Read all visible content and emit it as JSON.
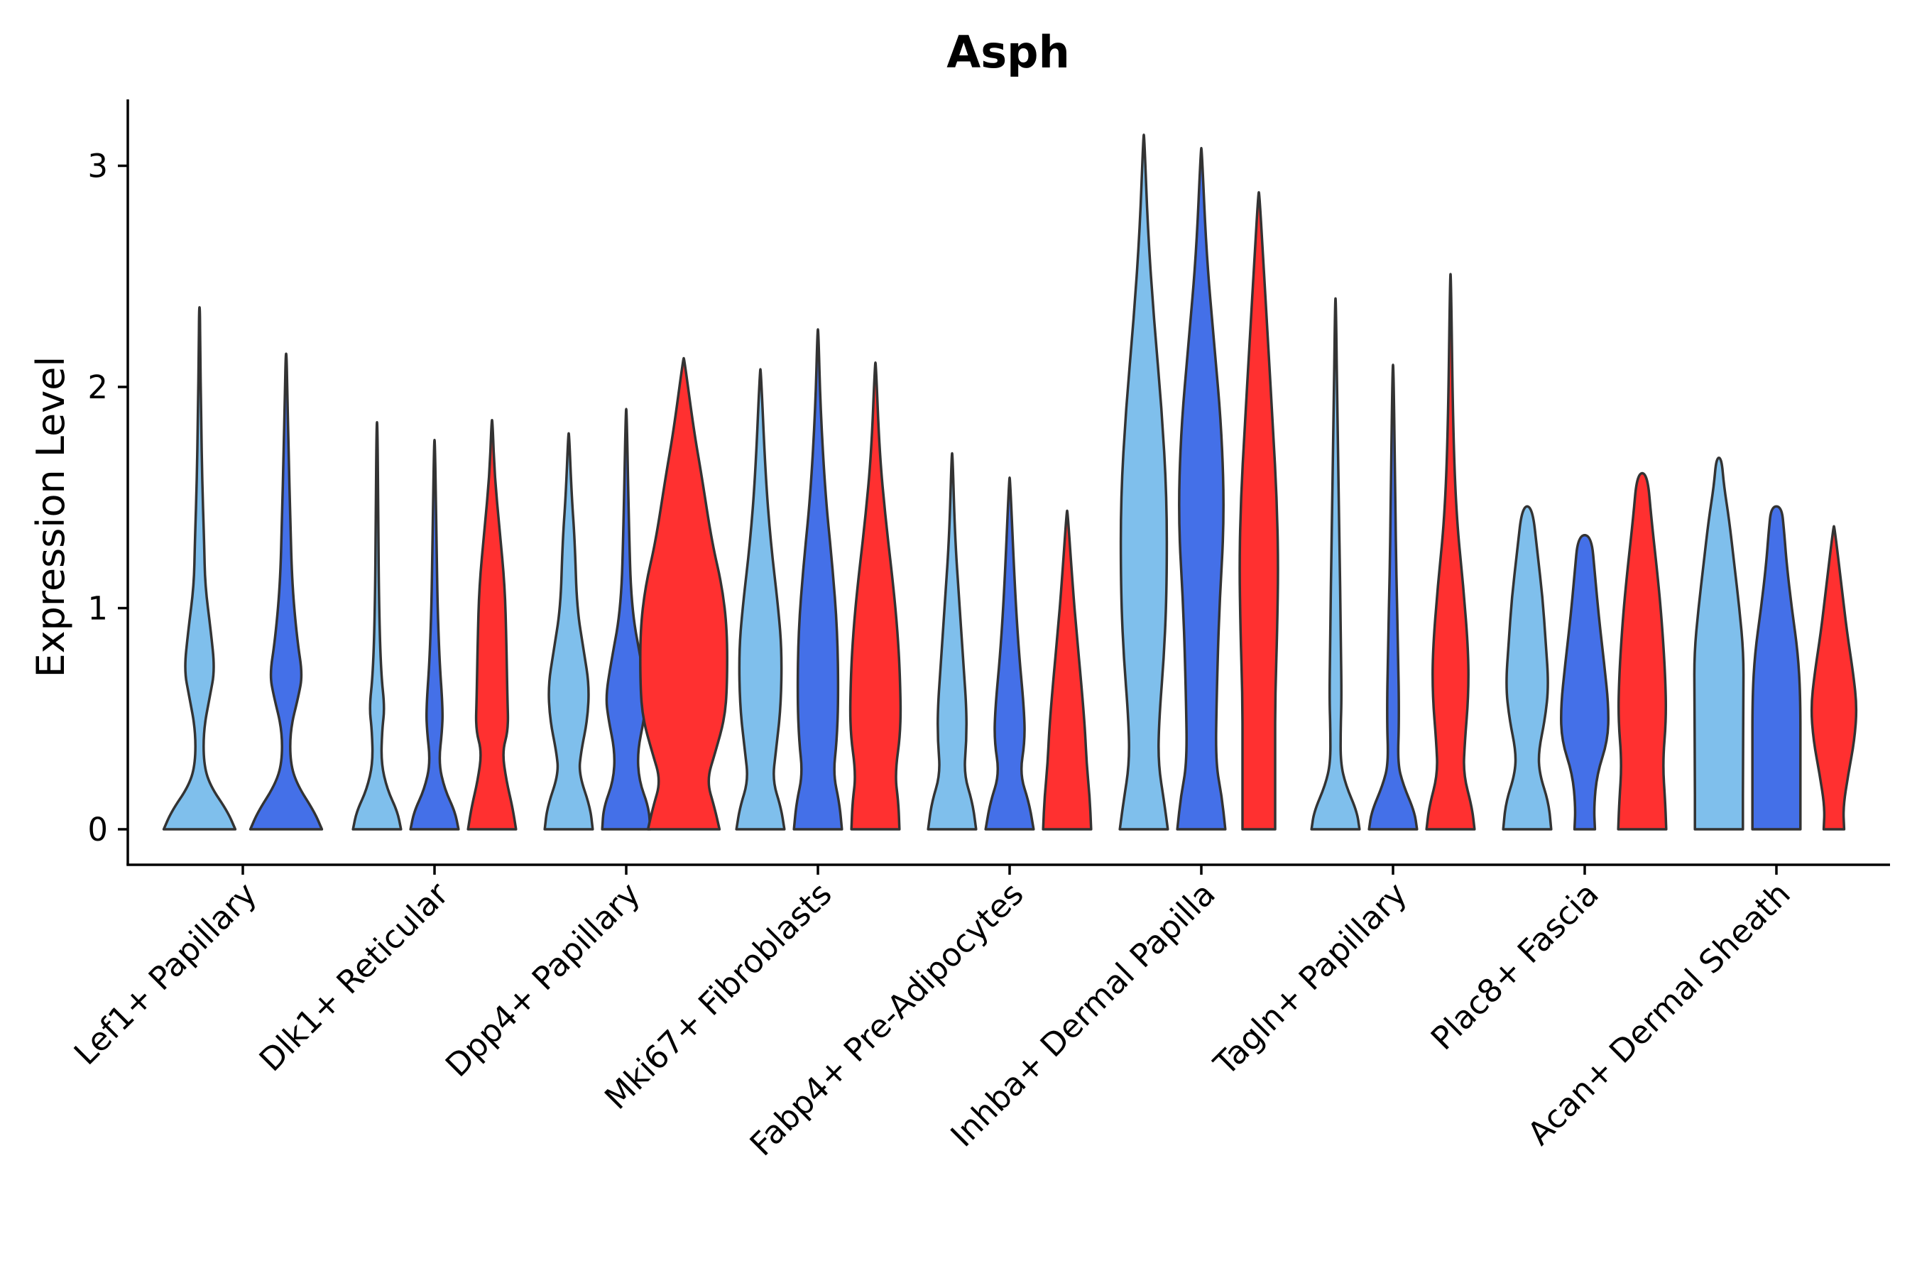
{
  "chart_data": {
    "type": "violin",
    "title": "Asph",
    "xlabel": "",
    "ylabel": "Expression Level",
    "ylim": [
      -0.16,
      3.3
    ],
    "yticks": [
      0,
      1,
      2,
      3
    ],
    "categories": [
      "Lef1+ Papillary",
      "Dlk1+ Reticular",
      "Dpp4+ Papillary",
      "Mki67+ Fibroblasts",
      "Fabp4+ Pre-Adipocytes",
      "Inhba+ Dermal Papilla",
      "Tagln+ Papillary",
      "Plac8+ Fascia",
      "Acan+ Dermal Sheath"
    ],
    "series": [
      {
        "name": "group-1",
        "color": "#7fbfec"
      },
      {
        "name": "group-2",
        "color": "#4470e8"
      },
      {
        "name": "group-3",
        "color": "#ff3030"
      }
    ],
    "violins": [
      {
        "category": 0,
        "series": 0,
        "max": 2.36,
        "profile": [
          [
            0,
            0.7
          ],
          [
            0.08,
            0.55
          ],
          [
            0.2,
            0.2
          ],
          [
            0.3,
            0.08
          ],
          [
            0.45,
            0.08
          ],
          [
            0.6,
            0.2
          ],
          [
            0.72,
            0.3
          ],
          [
            0.9,
            0.22
          ],
          [
            1.1,
            0.11
          ],
          [
            1.3,
            0.09
          ],
          [
            1.6,
            0.05
          ],
          [
            1.9,
            0.03
          ],
          [
            2.15,
            0.015
          ],
          [
            2.36,
            0.008
          ]
        ]
      },
      {
        "category": 0,
        "series": 1,
        "max": 2.15,
        "profile": [
          [
            0,
            0.7
          ],
          [
            0.08,
            0.55
          ],
          [
            0.2,
            0.22
          ],
          [
            0.3,
            0.08
          ],
          [
            0.45,
            0.08
          ],
          [
            0.6,
            0.24
          ],
          [
            0.7,
            0.32
          ],
          [
            0.85,
            0.22
          ],
          [
            1.1,
            0.12
          ],
          [
            1.4,
            0.08
          ],
          [
            1.7,
            0.05
          ],
          [
            1.95,
            0.025
          ],
          [
            2.15,
            0.008
          ]
        ]
      },
      {
        "category": 1,
        "series": 0,
        "max": 1.84,
        "profile": [
          [
            0,
            0.47
          ],
          [
            0.08,
            0.4
          ],
          [
            0.18,
            0.2
          ],
          [
            0.3,
            0.08
          ],
          [
            0.45,
            0.1
          ],
          [
            0.55,
            0.15
          ],
          [
            0.7,
            0.08
          ],
          [
            1.0,
            0.04
          ],
          [
            1.4,
            0.025
          ],
          [
            1.84,
            0.008
          ]
        ]
      },
      {
        "category": 1,
        "series": 1,
        "max": 1.76,
        "profile": [
          [
            0,
            0.47
          ],
          [
            0.08,
            0.4
          ],
          [
            0.18,
            0.2
          ],
          [
            0.3,
            0.08
          ],
          [
            0.45,
            0.15
          ],
          [
            0.55,
            0.16
          ],
          [
            0.75,
            0.1
          ],
          [
            1.0,
            0.06
          ],
          [
            1.3,
            0.04
          ],
          [
            1.76,
            0.008
          ]
        ]
      },
      {
        "category": 1,
        "series": 2,
        "max": 1.85,
        "profile": [
          [
            0,
            0.47
          ],
          [
            0.1,
            0.4
          ],
          [
            0.22,
            0.28
          ],
          [
            0.35,
            0.2
          ],
          [
            0.45,
            0.32
          ],
          [
            0.6,
            0.3
          ],
          [
            0.85,
            0.28
          ],
          [
            1.1,
            0.25
          ],
          [
            1.35,
            0.15
          ],
          [
            1.6,
            0.05
          ],
          [
            1.85,
            0.008
          ]
        ]
      },
      {
        "category": 2,
        "series": 0,
        "max": 1.79,
        "profile": [
          [
            0,
            0.47
          ],
          [
            0.1,
            0.42
          ],
          [
            0.25,
            0.2
          ],
          [
            0.35,
            0.24
          ],
          [
            0.5,
            0.37
          ],
          [
            0.65,
            0.4
          ],
          [
            0.8,
            0.3
          ],
          [
            1.0,
            0.16
          ],
          [
            1.3,
            0.12
          ],
          [
            1.5,
            0.06
          ],
          [
            1.79,
            0.008
          ]
        ]
      },
      {
        "category": 2,
        "series": 1,
        "max": 1.9,
        "profile": [
          [
            0,
            0.47
          ],
          [
            0.1,
            0.44
          ],
          [
            0.22,
            0.25
          ],
          [
            0.35,
            0.22
          ],
          [
            0.5,
            0.35
          ],
          [
            0.6,
            0.4
          ],
          [
            0.75,
            0.3
          ],
          [
            1.0,
            0.1
          ],
          [
            1.4,
            0.05
          ],
          [
            1.9,
            0.008
          ]
        ]
      },
      {
        "category": 2,
        "series": 2,
        "max": 2.13,
        "profile": [
          [
            0,
            0.7
          ],
          [
            0.1,
            0.6
          ],
          [
            0.22,
            0.45
          ],
          [
            0.35,
            0.62
          ],
          [
            0.5,
            0.8
          ],
          [
            0.65,
            0.85
          ],
          [
            0.9,
            0.85
          ],
          [
            1.1,
            0.75
          ],
          [
            1.3,
            0.55
          ],
          [
            1.6,
            0.35
          ],
          [
            1.8,
            0.2
          ],
          [
            2.13,
            0.008
          ]
        ]
      },
      {
        "category": 3,
        "series": 0,
        "max": 2.08,
        "profile": [
          [
            0,
            0.47
          ],
          [
            0.1,
            0.4
          ],
          [
            0.22,
            0.24
          ],
          [
            0.35,
            0.3
          ],
          [
            0.55,
            0.4
          ],
          [
            0.8,
            0.42
          ],
          [
            1.0,
            0.35
          ],
          [
            1.3,
            0.2
          ],
          [
            1.6,
            0.1
          ],
          [
            2.08,
            0.008
          ]
        ]
      },
      {
        "category": 3,
        "series": 1,
        "max": 2.26,
        "profile": [
          [
            0,
            0.47
          ],
          [
            0.12,
            0.42
          ],
          [
            0.25,
            0.3
          ],
          [
            0.4,
            0.37
          ],
          [
            0.6,
            0.4
          ],
          [
            0.9,
            0.38
          ],
          [
            1.2,
            0.28
          ],
          [
            1.5,
            0.15
          ],
          [
            1.9,
            0.05
          ],
          [
            2.26,
            0.008
          ]
        ]
      },
      {
        "category": 3,
        "series": 2,
        "max": 2.11,
        "profile": [
          [
            0,
            0.47
          ],
          [
            0.12,
            0.45
          ],
          [
            0.25,
            0.38
          ],
          [
            0.45,
            0.5
          ],
          [
            0.7,
            0.48
          ],
          [
            0.9,
            0.43
          ],
          [
            1.1,
            0.35
          ],
          [
            1.4,
            0.2
          ],
          [
            1.7,
            0.08
          ],
          [
            2.11,
            0.008
          ]
        ]
      },
      {
        "category": 4,
        "series": 0,
        "max": 1.7,
        "profile": [
          [
            0,
            0.47
          ],
          [
            0.12,
            0.4
          ],
          [
            0.25,
            0.23
          ],
          [
            0.4,
            0.28
          ],
          [
            0.55,
            0.28
          ],
          [
            0.75,
            0.22
          ],
          [
            1.0,
            0.15
          ],
          [
            1.3,
            0.06
          ],
          [
            1.7,
            0.008
          ]
        ]
      },
      {
        "category": 4,
        "series": 1,
        "max": 1.59,
        "profile": [
          [
            0,
            0.47
          ],
          [
            0.12,
            0.38
          ],
          [
            0.25,
            0.2
          ],
          [
            0.4,
            0.3
          ],
          [
            0.55,
            0.28
          ],
          [
            0.8,
            0.18
          ],
          [
            1.1,
            0.1
          ],
          [
            1.59,
            0.008
          ]
        ]
      },
      {
        "category": 4,
        "series": 2,
        "max": 1.44,
        "profile": [
          [
            0,
            0.47
          ],
          [
            0.15,
            0.44
          ],
          [
            0.3,
            0.38
          ],
          [
            0.45,
            0.35
          ],
          [
            0.65,
            0.28
          ],
          [
            0.9,
            0.18
          ],
          [
            1.1,
            0.11
          ],
          [
            1.44,
            0.008
          ]
        ]
      },
      {
        "category": 5,
        "series": 0,
        "max": 3.14,
        "profile": [
          [
            0,
            0.47
          ],
          [
            0.12,
            0.4
          ],
          [
            0.3,
            0.28
          ],
          [
            0.5,
            0.3
          ],
          [
            0.8,
            0.4
          ],
          [
            1.1,
            0.45
          ],
          [
            1.5,
            0.45
          ],
          [
            1.9,
            0.35
          ],
          [
            2.3,
            0.2
          ],
          [
            2.7,
            0.08
          ],
          [
            3.14,
            0.008
          ]
        ]
      },
      {
        "category": 5,
        "series": 1,
        "max": 3.08,
        "profile": [
          [
            0,
            0.47
          ],
          [
            0.15,
            0.4
          ],
          [
            0.3,
            0.28
          ],
          [
            0.6,
            0.3
          ],
          [
            1.0,
            0.35
          ],
          [
            1.4,
            0.45
          ],
          [
            1.8,
            0.4
          ],
          [
            2.2,
            0.25
          ],
          [
            2.6,
            0.1
          ],
          [
            3.08,
            0.008
          ]
        ]
      },
      {
        "category": 5,
        "series": 2,
        "max": 2.88,
        "profile": [
          [
            0,
            0.32
          ],
          [
            0.3,
            0.32
          ],
          [
            0.6,
            0.32
          ],
          [
            0.9,
            0.36
          ],
          [
            1.2,
            0.38
          ],
          [
            1.5,
            0.35
          ],
          [
            1.8,
            0.28
          ],
          [
            2.2,
            0.18
          ],
          [
            2.6,
            0.08
          ],
          [
            2.88,
            0.008
          ]
        ]
      },
      {
        "category": 6,
        "series": 0,
        "max": 2.4,
        "profile": [
          [
            0,
            0.47
          ],
          [
            0.08,
            0.42
          ],
          [
            0.2,
            0.2
          ],
          [
            0.3,
            0.1
          ],
          [
            0.45,
            0.1
          ],
          [
            0.6,
            0.12
          ],
          [
            0.9,
            0.1
          ],
          [
            1.3,
            0.08
          ],
          [
            1.8,
            0.04
          ],
          [
            2.4,
            0.008
          ]
        ]
      },
      {
        "category": 6,
        "series": 1,
        "max": 2.1,
        "profile": [
          [
            0,
            0.47
          ],
          [
            0.08,
            0.42
          ],
          [
            0.2,
            0.2
          ],
          [
            0.3,
            0.09
          ],
          [
            0.5,
            0.12
          ],
          [
            0.8,
            0.1
          ],
          [
            1.2,
            0.06
          ],
          [
            1.6,
            0.04
          ],
          [
            2.1,
            0.008
          ]
        ]
      },
      {
        "category": 6,
        "series": 2,
        "max": 2.51,
        "profile": [
          [
            0,
            0.47
          ],
          [
            0.1,
            0.42
          ],
          [
            0.25,
            0.25
          ],
          [
            0.4,
            0.28
          ],
          [
            0.6,
            0.35
          ],
          [
            0.8,
            0.35
          ],
          [
            1.1,
            0.25
          ],
          [
            1.4,
            0.12
          ],
          [
            1.8,
            0.05
          ],
          [
            2.51,
            0.008
          ]
        ]
      },
      {
        "category": 7,
        "series": 0,
        "max": 1.46,
        "profile": [
          [
            0,
            0.47
          ],
          [
            0.12,
            0.42
          ],
          [
            0.25,
            0.24
          ],
          [
            0.35,
            0.22
          ],
          [
            0.5,
            0.35
          ],
          [
            0.65,
            0.42
          ],
          [
            0.85,
            0.36
          ],
          [
            1.05,
            0.3
          ],
          [
            1.25,
            0.2
          ],
          [
            1.46,
            0.1
          ]
        ]
      },
      {
        "category": 7,
        "series": 1,
        "max": 1.33,
        "profile": [
          [
            0,
            0.2
          ],
          [
            0.1,
            0.18
          ],
          [
            0.25,
            0.24
          ],
          [
            0.4,
            0.45
          ],
          [
            0.55,
            0.47
          ],
          [
            0.75,
            0.38
          ],
          [
            0.95,
            0.28
          ],
          [
            1.15,
            0.2
          ],
          [
            1.33,
            0.13
          ]
        ]
      },
      {
        "category": 7,
        "series": 2,
        "max": 1.61,
        "profile": [
          [
            0,
            0.47
          ],
          [
            0.12,
            0.45
          ],
          [
            0.3,
            0.4
          ],
          [
            0.5,
            0.47
          ],
          [
            0.7,
            0.45
          ],
          [
            0.95,
            0.38
          ],
          [
            1.15,
            0.3
          ],
          [
            1.4,
            0.18
          ],
          [
            1.61,
            0.1
          ]
        ]
      },
      {
        "category": 8,
        "series": 0,
        "max": 1.68,
        "profile": [
          [
            0,
            0.47
          ],
          [
            0.3,
            0.47
          ],
          [
            0.6,
            0.48
          ],
          [
            0.8,
            0.48
          ],
          [
            1.0,
            0.4
          ],
          [
            1.2,
            0.3
          ],
          [
            1.4,
            0.2
          ],
          [
            1.55,
            0.1
          ],
          [
            1.68,
            0.05
          ]
        ]
      },
      {
        "category": 8,
        "series": 1,
        "max": 1.46,
        "profile": [
          [
            0,
            0.47
          ],
          [
            0.3,
            0.47
          ],
          [
            0.6,
            0.47
          ],
          [
            0.8,
            0.42
          ],
          [
            1.0,
            0.3
          ],
          [
            1.2,
            0.2
          ],
          [
            1.35,
            0.15
          ],
          [
            1.46,
            0.1
          ]
        ]
      },
      {
        "category": 8,
        "series": 2,
        "max": 1.37,
        "profile": [
          [
            0,
            0.2
          ],
          [
            0.1,
            0.18
          ],
          [
            0.25,
            0.28
          ],
          [
            0.4,
            0.4
          ],
          [
            0.55,
            0.45
          ],
          [
            0.7,
            0.38
          ],
          [
            0.9,
            0.25
          ],
          [
            1.1,
            0.15
          ],
          [
            1.37,
            0.008
          ]
        ]
      }
    ]
  }
}
